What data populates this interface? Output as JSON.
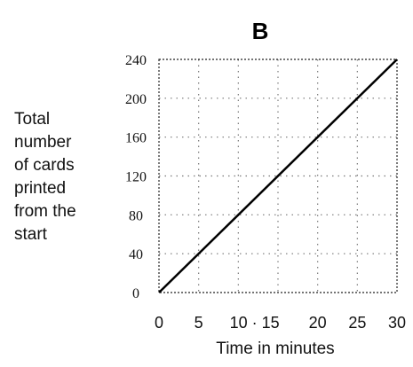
{
  "chart_data": {
    "type": "line",
    "title": "B",
    "ylabel_lines": [
      "Total",
      "number",
      "of cards",
      "printed",
      "from the",
      "start"
    ],
    "xlabel": "Time in minutes",
    "x_ticks": [
      "0",
      "5",
      "10 · 15",
      "20",
      "25",
      "30"
    ],
    "y_ticks": [
      "0",
      "40",
      "80",
      "120",
      "160",
      "200",
      "240"
    ],
    "x_grid": [
      5,
      10,
      15,
      20,
      25
    ],
    "y_grid": [
      40,
      80,
      120,
      160,
      200
    ],
    "xlim": [
      0,
      30
    ],
    "ylim": [
      0,
      240
    ],
    "grid": true,
    "series": [
      {
        "x": [
          0,
          30
        ],
        "y": [
          0,
          240
        ]
      }
    ]
  }
}
